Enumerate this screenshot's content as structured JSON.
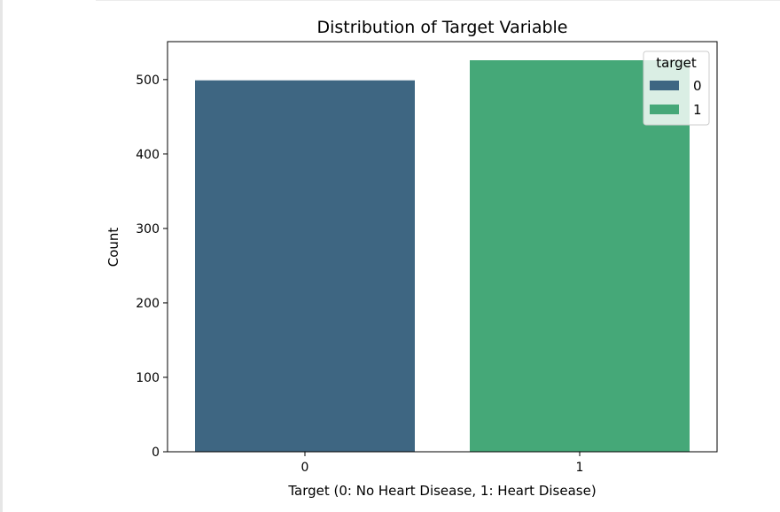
{
  "chart_data": {
    "type": "bar",
    "title": "Distribution of Target Variable",
    "xlabel": "Target (0: No Heart Disease, 1: Heart Disease)",
    "ylabel": "Count",
    "categories": [
      "0",
      "1"
    ],
    "values": [
      499,
      526
    ],
    "ylim": [
      0,
      551
    ],
    "yticks": [
      0,
      100,
      200,
      300,
      400,
      500
    ],
    "colors": [
      "#3e6682",
      "#45a878"
    ],
    "grid": false,
    "legend": {
      "title": "target",
      "placement": "top-right",
      "entries": [
        "0",
        "1"
      ]
    }
  }
}
